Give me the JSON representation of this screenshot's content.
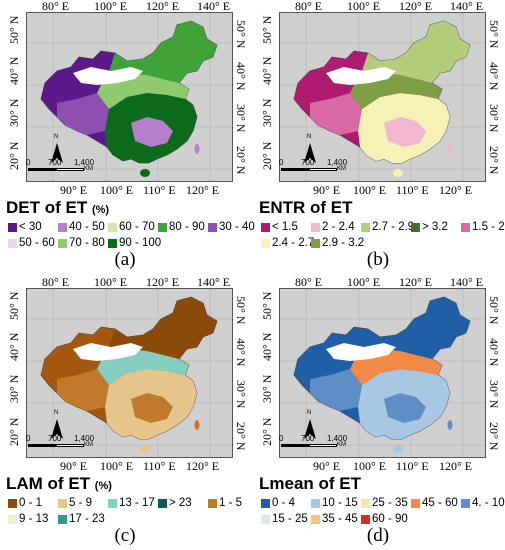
{
  "axes": {
    "top": [
      "80° E",
      "100° E",
      "120° E",
      "140° E"
    ],
    "bottom": [
      "90° E",
      "100° E",
      "110° E",
      "120° E"
    ],
    "left": [
      "50° N",
      "40° N",
      "30° N",
      "20° N"
    ],
    "right": [
      "50° N",
      "40° N",
      "30° N",
      "20° N"
    ]
  },
  "scale_bar": {
    "ticks": [
      "0",
      "700",
      "1,400"
    ],
    "unit": "KM",
    "north": "N"
  },
  "panels": [
    {
      "id": "a",
      "caption": "(a)",
      "title": "DET of ET",
      "unit": "(%)",
      "legend": [
        {
          "label": "< 30",
          "color": "#5a1a8c"
        },
        {
          "label": "40 - 50",
          "color": "#b57fce"
        },
        {
          "label": "60 - 70",
          "color": "#d7e6a6"
        },
        {
          "label": "80 - 90",
          "color": "#3fa33a"
        },
        {
          "label": "30 - 40",
          "color": "#8d4fb0"
        },
        {
          "label": "50 - 60",
          "color": "#e7d8ec"
        },
        {
          "label": "70 - 80",
          "color": "#8fcb6e"
        },
        {
          "label": "90 - 100",
          "color": "#0c6b1a"
        }
      ],
      "dominant": [
        "#5a1a8c",
        "#8d4fb0",
        "#3fa33a",
        "#0c6b1a",
        "#8fcb6e",
        "#b57fce"
      ]
    },
    {
      "id": "b",
      "caption": "(b)",
      "title": "ENTR of ET",
      "unit": "",
      "legend": [
        {
          "label": "< 1.5",
          "color": "#b01b72"
        },
        {
          "label": "2 - 2.4",
          "color": "#f2b6cf"
        },
        {
          "label": "2.7 - 2.9",
          "color": "#b4cc7c"
        },
        {
          "label": "> 3.2",
          "color": "#4f6b2a"
        },
        {
          "label": "1.5 - 2",
          "color": "#d96aa3"
        },
        {
          "label": "2.4 - 2.7",
          "color": "#f6f1b4"
        },
        {
          "label": "2.9 - 3.2",
          "color": "#7f9f45"
        }
      ],
      "dominant": [
        "#b01b72",
        "#d96aa3",
        "#b4cc7c",
        "#f6f1b4",
        "#7f9f45",
        "#f2b6cf"
      ]
    },
    {
      "id": "c",
      "caption": "(c)",
      "title": "LAM of ET",
      "unit": "(%)",
      "legend": [
        {
          "label": "0 - 1",
          "color": "#8c4a0a"
        },
        {
          "label": "5 - 9",
          "color": "#e6c58a"
        },
        {
          "label": "13 - 17",
          "color": "#86cfc0"
        },
        {
          "label": "> 23",
          "color": "#0e5a52"
        },
        {
          "label": "1 - 5",
          "color": "#c2792c"
        },
        {
          "label": "9 - 13",
          "color": "#f2ecd2"
        },
        {
          "label": "17 - 23",
          "color": "#2e9a8a"
        }
      ],
      "dominant": [
        "#a3570f",
        "#c2792c",
        "#8c4a0a",
        "#e6c58a",
        "#86cfc0",
        "#c2792c"
      ]
    },
    {
      "id": "d",
      "caption": "(d)",
      "title": "Lmean of ET",
      "unit": "",
      "legend": [
        {
          "label": "0 - 4",
          "color": "#1f5fa8"
        },
        {
          "label": "10 - 15",
          "color": "#a7c7e2"
        },
        {
          "label": "25 - 35",
          "color": "#f6e7b1"
        },
        {
          "label": "45 - 60",
          "color": "#f08a44"
        },
        {
          "label": "4. - 10",
          "color": "#5d8fc6"
        },
        {
          "label": "15 - 25",
          "color": "#dbe8f0"
        },
        {
          "label": "35 - 45",
          "color": "#f8c47a"
        },
        {
          "label": "60 - 90",
          "color": "#d7301f"
        }
      ],
      "dominant": [
        "#1f5fa8",
        "#5d8fc6",
        "#1f5fa8",
        "#a7c7e2",
        "#f08a44",
        "#5d8fc6"
      ]
    }
  ]
}
